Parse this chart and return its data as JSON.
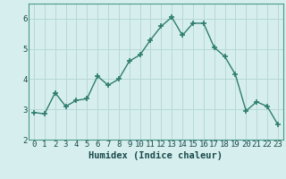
{
  "x": [
    0,
    1,
    2,
    3,
    4,
    5,
    6,
    7,
    8,
    9,
    10,
    11,
    12,
    13,
    14,
    15,
    16,
    17,
    18,
    19,
    20,
    21,
    22,
    23
  ],
  "y": [
    2.9,
    2.85,
    3.55,
    3.1,
    3.3,
    3.35,
    4.1,
    3.8,
    4.0,
    4.6,
    4.8,
    5.3,
    5.75,
    6.05,
    5.45,
    5.85,
    5.85,
    5.05,
    4.75,
    4.15,
    2.95,
    3.25,
    3.1,
    2.5
  ],
  "line_color": "#2e7d6e",
  "marker": "+",
  "marker_size": 4,
  "marker_lw": 1.2,
  "bg_color": "#d6eeee",
  "grid_color": "#b8d8d8",
  "xlabel": "Humidex (Indice chaleur)",
  "xlabel_fontsize": 7.5,
  "tick_fontsize": 6.5,
  "ylim": [
    2,
    6.5
  ],
  "xlim": [
    -0.5,
    23.5
  ],
  "yticks": [
    2,
    3,
    4,
    5,
    6
  ],
  "xticks": [
    0,
    1,
    2,
    3,
    4,
    5,
    6,
    7,
    8,
    9,
    10,
    11,
    12,
    13,
    14,
    15,
    16,
    17,
    18,
    19,
    20,
    21,
    22,
    23
  ],
  "line_width": 1.0
}
